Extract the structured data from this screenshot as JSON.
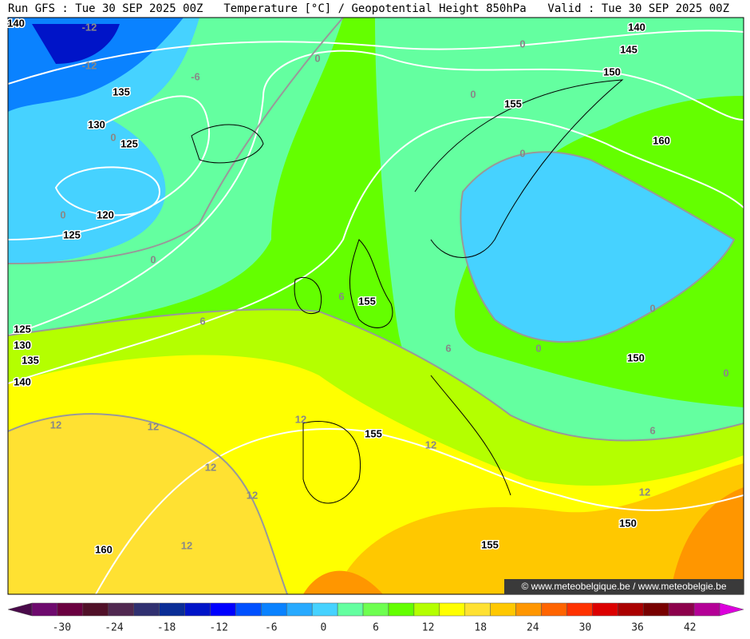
{
  "header": {
    "left": "Run GFS : Tue 30 SEP 2025 00Z",
    "center": "Temperature [°C] / Geopotential Height 850hPa",
    "right": "Valid : Tue 30 SEP 2025 00Z"
  },
  "map": {
    "labels": [
      "140",
      "-12",
      "-12",
      "-6",
      "135",
      "130",
      "0",
      "125",
      "0",
      "120",
      "125",
      "0",
      "0",
      "0",
      "140",
      "145",
      "150",
      "0",
      "155",
      "160",
      "0",
      "6",
      "155",
      "6",
      "125",
      "130",
      "135",
      "140",
      "0",
      "0",
      "6",
      "150",
      "0",
      "12",
      "12",
      "12",
      "155",
      "6",
      "12",
      "12",
      "12",
      "12",
      "150",
      "155",
      "12",
      "160"
    ],
    "watermark": "© www.meteobelgique.be / www.meteobelgie.be"
  },
  "colorbar": {
    "ticks": [
      -30,
      -24,
      -18,
      -12,
      -6,
      0,
      6,
      12,
      18,
      24,
      30,
      36,
      42
    ],
    "colors": [
      "#4a0a4a",
      "#6e0a6e",
      "#6a0040",
      "#501028",
      "#502850",
      "#303070",
      "#0a2d96",
      "#0014c8",
      "#0000ff",
      "#0050ff",
      "#0a82ff",
      "#28aaff",
      "#46d2ff",
      "#64ffa0",
      "#6eff50",
      "#64ff00",
      "#b4ff00",
      "#ffff00",
      "#ffe132",
      "#ffc800",
      "#ff9600",
      "#ff6400",
      "#ff3200",
      "#dc0000",
      "#aa0000",
      "#780000",
      "#8c004b",
      "#b40096",
      "#dc00dc"
    ]
  }
}
